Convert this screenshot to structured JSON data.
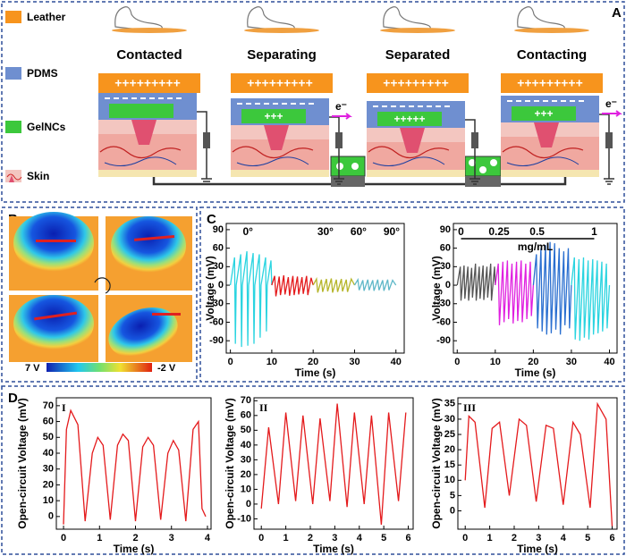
{
  "panel_labels": [
    "A",
    "B",
    "C",
    "D"
  ],
  "panel_a": {
    "legend": [
      "Leather",
      "PDMS",
      "GelNCs",
      "Skin"
    ],
    "leather_charge": "+++++++++",
    "electron": "e⁻",
    "stages": [
      {
        "title": "Contacted"
      },
      {
        "title": "Separating",
        "gel_charge": "+++"
      },
      {
        "title": "Separated",
        "gel_charge": "+++++"
      },
      {
        "title": "Contacting",
        "gel_charge": "+++"
      }
    ]
  },
  "panel_b": {
    "colorbar": {
      "max_label": "7 V",
      "min_label": "-2 V"
    }
  },
  "chart_data": [
    {
      "type": "line",
      "xlabel": "Time (s)",
      "ylabel": "Voltage (mV)",
      "xlim": [
        -1,
        42
      ],
      "ylim": [
        -110,
        100
      ],
      "xticks": [
        0,
        10,
        20,
        30,
        40
      ],
      "yticks": [
        -90,
        -60,
        -30,
        0,
        30,
        60,
        90
      ],
      "series": [
        {
          "name": "0°",
          "color": "#2ad4e0",
          "x": [
            0,
            1,
            1.2,
            1.4,
            2.5,
            2.7,
            2.9,
            4,
            4.2,
            4.4,
            5.5,
            5.7,
            5.9,
            7,
            7.2,
            7.4,
            8.5,
            8.7,
            8.9,
            9.8,
            10
          ],
          "values": [
            0,
            45,
            -95,
            0,
            50,
            -100,
            0,
            55,
            -98,
            0,
            52,
            -95,
            0,
            50,
            -85,
            0,
            45,
            -75,
            0,
            40,
            0
          ]
        },
        {
          "name": "30°",
          "color": "#e41a1c",
          "x": [
            10,
            10.7,
            11,
            11.8,
            12.1,
            12.9,
            13.2,
            14,
            14.3,
            15.1,
            15.4,
            16.2,
            16.5,
            17.3,
            17.6,
            18.4,
            18.7,
            19.5,
            20
          ],
          "values": [
            0,
            15,
            -18,
            14,
            -16,
            16,
            -15,
            13,
            -17,
            15,
            -16,
            14,
            -15,
            13,
            -14,
            15,
            -16,
            12,
            0
          ]
        },
        {
          "name": "60°",
          "color": "#b5b52a",
          "x": [
            20,
            20.8,
            21.1,
            22,
            22.3,
            23.2,
            23.5,
            24.4,
            24.7,
            25.6,
            25.9,
            26.8,
            27.1,
            28,
            28.3,
            29.2,
            30
          ],
          "values": [
            0,
            10,
            -12,
            9,
            -11,
            10,
            -10,
            11,
            -12,
            9,
            -11,
            10,
            -10,
            9,
            -11,
            10,
            0
          ]
        },
        {
          "name": "90°",
          "color": "#5fb8c8",
          "x": [
            30,
            30.8,
            31.1,
            32,
            32.3,
            33.2,
            33.5,
            34.4,
            34.7,
            35.6,
            35.9,
            36.8,
            37.1,
            38,
            38.3,
            39.2,
            40
          ],
          "values": [
            0,
            9,
            -8,
            8,
            -9,
            9,
            -8,
            8,
            -9,
            9,
            -8,
            8,
            -9,
            9,
            -8,
            8,
            0
          ]
        }
      ]
    },
    {
      "type": "line",
      "xlabel": "Time (s)",
      "ylabel": "Voltage (mV)",
      "annotation": "mg/mL",
      "xlim": [
        -1,
        42
      ],
      "ylim": [
        -110,
        100
      ],
      "xticks": [
        0,
        10,
        20,
        30,
        40
      ],
      "yticks": [
        -90,
        -60,
        -30,
        0,
        30,
        60,
        90
      ],
      "series": [
        {
          "name": "0",
          "color": "#555555",
          "x": [
            0,
            0.8,
            1,
            1.8,
            2,
            2.8,
            3,
            3.8,
            4,
            4.8,
            5,
            5.8,
            6,
            6.8,
            7,
            7.8,
            8,
            8.8,
            9,
            9.8,
            10
          ],
          "values": [
            0,
            30,
            -25,
            32,
            -22,
            30,
            -25,
            28,
            -20,
            35,
            -25,
            30,
            -22,
            32,
            -24,
            30,
            -20,
            35,
            -25,
            30,
            0
          ]
        },
        {
          "name": "0.25",
          "color": "#e020e0",
          "x": [
            10,
            10.8,
            11.1,
            12,
            12.3,
            13.2,
            13.5,
            14.4,
            14.7,
            15.6,
            15.9,
            16.8,
            17.1,
            18,
            18.3,
            19.2,
            19.5,
            20
          ],
          "values": [
            0,
            35,
            -65,
            38,
            -60,
            40,
            -55,
            35,
            -62,
            38,
            -58,
            40,
            -60,
            35,
            -55,
            38,
            -50,
            0
          ]
        },
        {
          "name": "0.5",
          "color": "#2a6fd0",
          "x": [
            20,
            20.8,
            21.1,
            22,
            22.3,
            23.2,
            23.5,
            24.4,
            24.7,
            25.6,
            25.9,
            26.8,
            27.1,
            28,
            28.3,
            29.2,
            29.5,
            30
          ],
          "values": [
            0,
            50,
            -70,
            60,
            -75,
            65,
            -80,
            70,
            -78,
            68,
            -72,
            60,
            -80,
            55,
            -65,
            60,
            -70,
            0
          ]
        },
        {
          "name": "1",
          "color": "#2ad4e0",
          "x": [
            30,
            30.8,
            31,
            32,
            32.2,
            33.2,
            33.4,
            34.4,
            34.6,
            35.6,
            35.8,
            36.8,
            37,
            38,
            38.2,
            39.2,
            39.4,
            40
          ],
          "values": [
            0,
            45,
            -88,
            42,
            -90,
            45,
            -85,
            40,
            -88,
            42,
            -80,
            40,
            -78,
            38,
            -75,
            35,
            -70,
            0
          ]
        }
      ]
    },
    {
      "type": "line",
      "label": "I",
      "xlabel": "Time (s)",
      "ylabel": "Open-circuit Voltage (mV)",
      "xlim": [
        -0.2,
        4.1
      ],
      "ylim": [
        -8,
        75
      ],
      "xticks": [
        0,
        1,
        2,
        3,
        4
      ],
      "yticks": [
        0,
        10,
        20,
        30,
        40,
        50,
        60,
        70
      ],
      "series": [
        {
          "color": "#e41a1c",
          "x": [
            0,
            0.08,
            0.2,
            0.4,
            0.6,
            0.8,
            0.95,
            1.1,
            1.3,
            1.5,
            1.65,
            1.8,
            2,
            2.2,
            2.35,
            2.5,
            2.7,
            2.9,
            3.05,
            3.2,
            3.4,
            3.6,
            3.75,
            3.85,
            3.95
          ],
          "values": [
            -5,
            55,
            67,
            58,
            -3,
            40,
            50,
            45,
            -2,
            45,
            52,
            48,
            -3,
            44,
            50,
            45,
            -2,
            40,
            48,
            42,
            -3,
            55,
            60,
            5,
            0
          ]
        }
      ]
    },
    {
      "type": "line",
      "label": "II",
      "xlabel": "Time (s)",
      "ylabel": "Open-circuit Voltage (mV)",
      "xlim": [
        -0.3,
        6.2
      ],
      "ylim": [
        -17,
        72
      ],
      "xticks": [
        0,
        1,
        2,
        3,
        4,
        5,
        6
      ],
      "yticks": [
        -10,
        0,
        10,
        20,
        30,
        40,
        50,
        60,
        70
      ],
      "series": [
        {
          "color": "#e41a1c",
          "x": [
            0,
            0.3,
            0.7,
            1,
            1.4,
            1.7,
            2.1,
            2.4,
            2.8,
            3.1,
            3.5,
            3.8,
            4.2,
            4.5,
            4.9,
            5.2,
            5.6,
            5.9
          ],
          "values": [
            -3,
            52,
            0,
            62,
            2,
            60,
            0,
            58,
            2,
            68,
            -2,
            62,
            0,
            60,
            -14,
            62,
            2,
            62
          ]
        }
      ]
    },
    {
      "type": "line",
      "label": "III",
      "xlabel": "Time (s)",
      "ylabel": "Open-circuit Voltage (mV)",
      "xlim": [
        -0.3,
        6.2
      ],
      "ylim": [
        -6,
        37
      ],
      "xticks": [
        0,
        1,
        2,
        3,
        4,
        5,
        6
      ],
      "yticks": [
        0,
        5,
        10,
        15,
        20,
        25,
        30,
        35
      ],
      "series": [
        {
          "color": "#e41a1c",
          "x": [
            0,
            0.15,
            0.4,
            0.8,
            1.1,
            1.4,
            1.8,
            2.2,
            2.5,
            2.9,
            3.3,
            3.6,
            4,
            4.4,
            4.7,
            5.1,
            5.4,
            5.75,
            6
          ],
          "values": [
            10,
            31,
            29,
            1,
            27,
            29,
            5,
            30,
            28,
            3,
            28,
            27,
            2,
            29,
            25,
            1,
            35,
            30,
            -5
          ]
        }
      ]
    }
  ]
}
